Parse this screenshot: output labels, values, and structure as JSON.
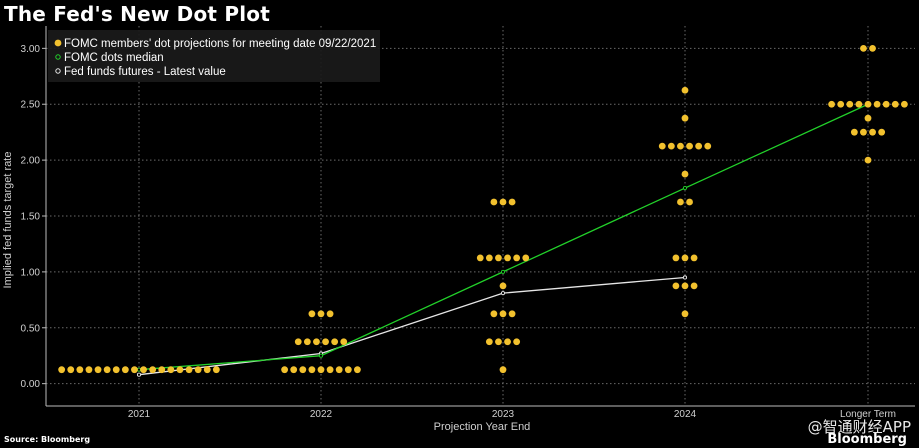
{
  "title": "The Fed's New Dot Plot",
  "source": "Source: Bloomberg",
  "watermark": "@智通财经APP",
  "brand": "Bloomberg",
  "colors": {
    "background": "#000000",
    "dots": "#f2c12e",
    "median": "#22d12a",
    "futures": "#e6e6e6",
    "grid": "#6a6a6a"
  },
  "chart_data": {
    "type": "scatter",
    "xlabel": "Projection Year End",
    "ylabel": "Implied fed funds target rate",
    "categories": [
      "2021",
      "2022",
      "2023",
      "2024",
      "Longer Term"
    ],
    "ylim": [
      -0.2,
      3.2
    ],
    "yticks": [
      "0.00",
      "0.50",
      "1.00",
      "1.50",
      "2.00",
      "2.50",
      "3.00"
    ],
    "grid": true,
    "legend_position": "top-left",
    "legend": [
      "FOMC members' dot projections for meeting date 09/22/2021",
      "FOMC dots median",
      "Fed funds futures - Latest value"
    ],
    "dots": [
      {
        "category": "2021",
        "rows": [
          {
            "y": 0.125,
            "count": 18
          }
        ]
      },
      {
        "category": "2022",
        "rows": [
          {
            "y": 0.625,
            "count": 3
          },
          {
            "y": 0.375,
            "count": 6
          },
          {
            "y": 0.125,
            "count": 9
          }
        ]
      },
      {
        "category": "2023",
        "rows": [
          {
            "y": 1.625,
            "count": 3
          },
          {
            "y": 1.125,
            "count": 6
          },
          {
            "y": 0.875,
            "count": 1
          },
          {
            "y": 0.625,
            "count": 3
          },
          {
            "y": 0.375,
            "count": 4
          },
          {
            "y": 0.125,
            "count": 1
          }
        ]
      },
      {
        "category": "2024",
        "rows": [
          {
            "y": 2.625,
            "count": 1
          },
          {
            "y": 2.375,
            "count": 1
          },
          {
            "y": 2.125,
            "count": 6
          },
          {
            "y": 1.875,
            "count": 1
          },
          {
            "y": 1.625,
            "count": 2
          },
          {
            "y": 1.125,
            "count": 3
          },
          {
            "y": 0.875,
            "count": 3
          },
          {
            "y": 0.625,
            "count": 1
          }
        ]
      },
      {
        "category": "Longer Term",
        "rows": [
          {
            "y": 3.0,
            "count": 2
          },
          {
            "y": 2.5,
            "count": 9
          },
          {
            "y": 2.375,
            "count": 1
          },
          {
            "y": 2.25,
            "count": 4
          },
          {
            "y": 2.0,
            "count": 1
          }
        ]
      }
    ],
    "series": [
      {
        "name": "FOMC dots median",
        "values": [
          0.125,
          0.25,
          1.0,
          1.75,
          2.5
        ]
      },
      {
        "name": "Fed funds futures - Latest value",
        "values": [
          0.08,
          0.27,
          0.81,
          0.95,
          null
        ]
      }
    ]
  }
}
